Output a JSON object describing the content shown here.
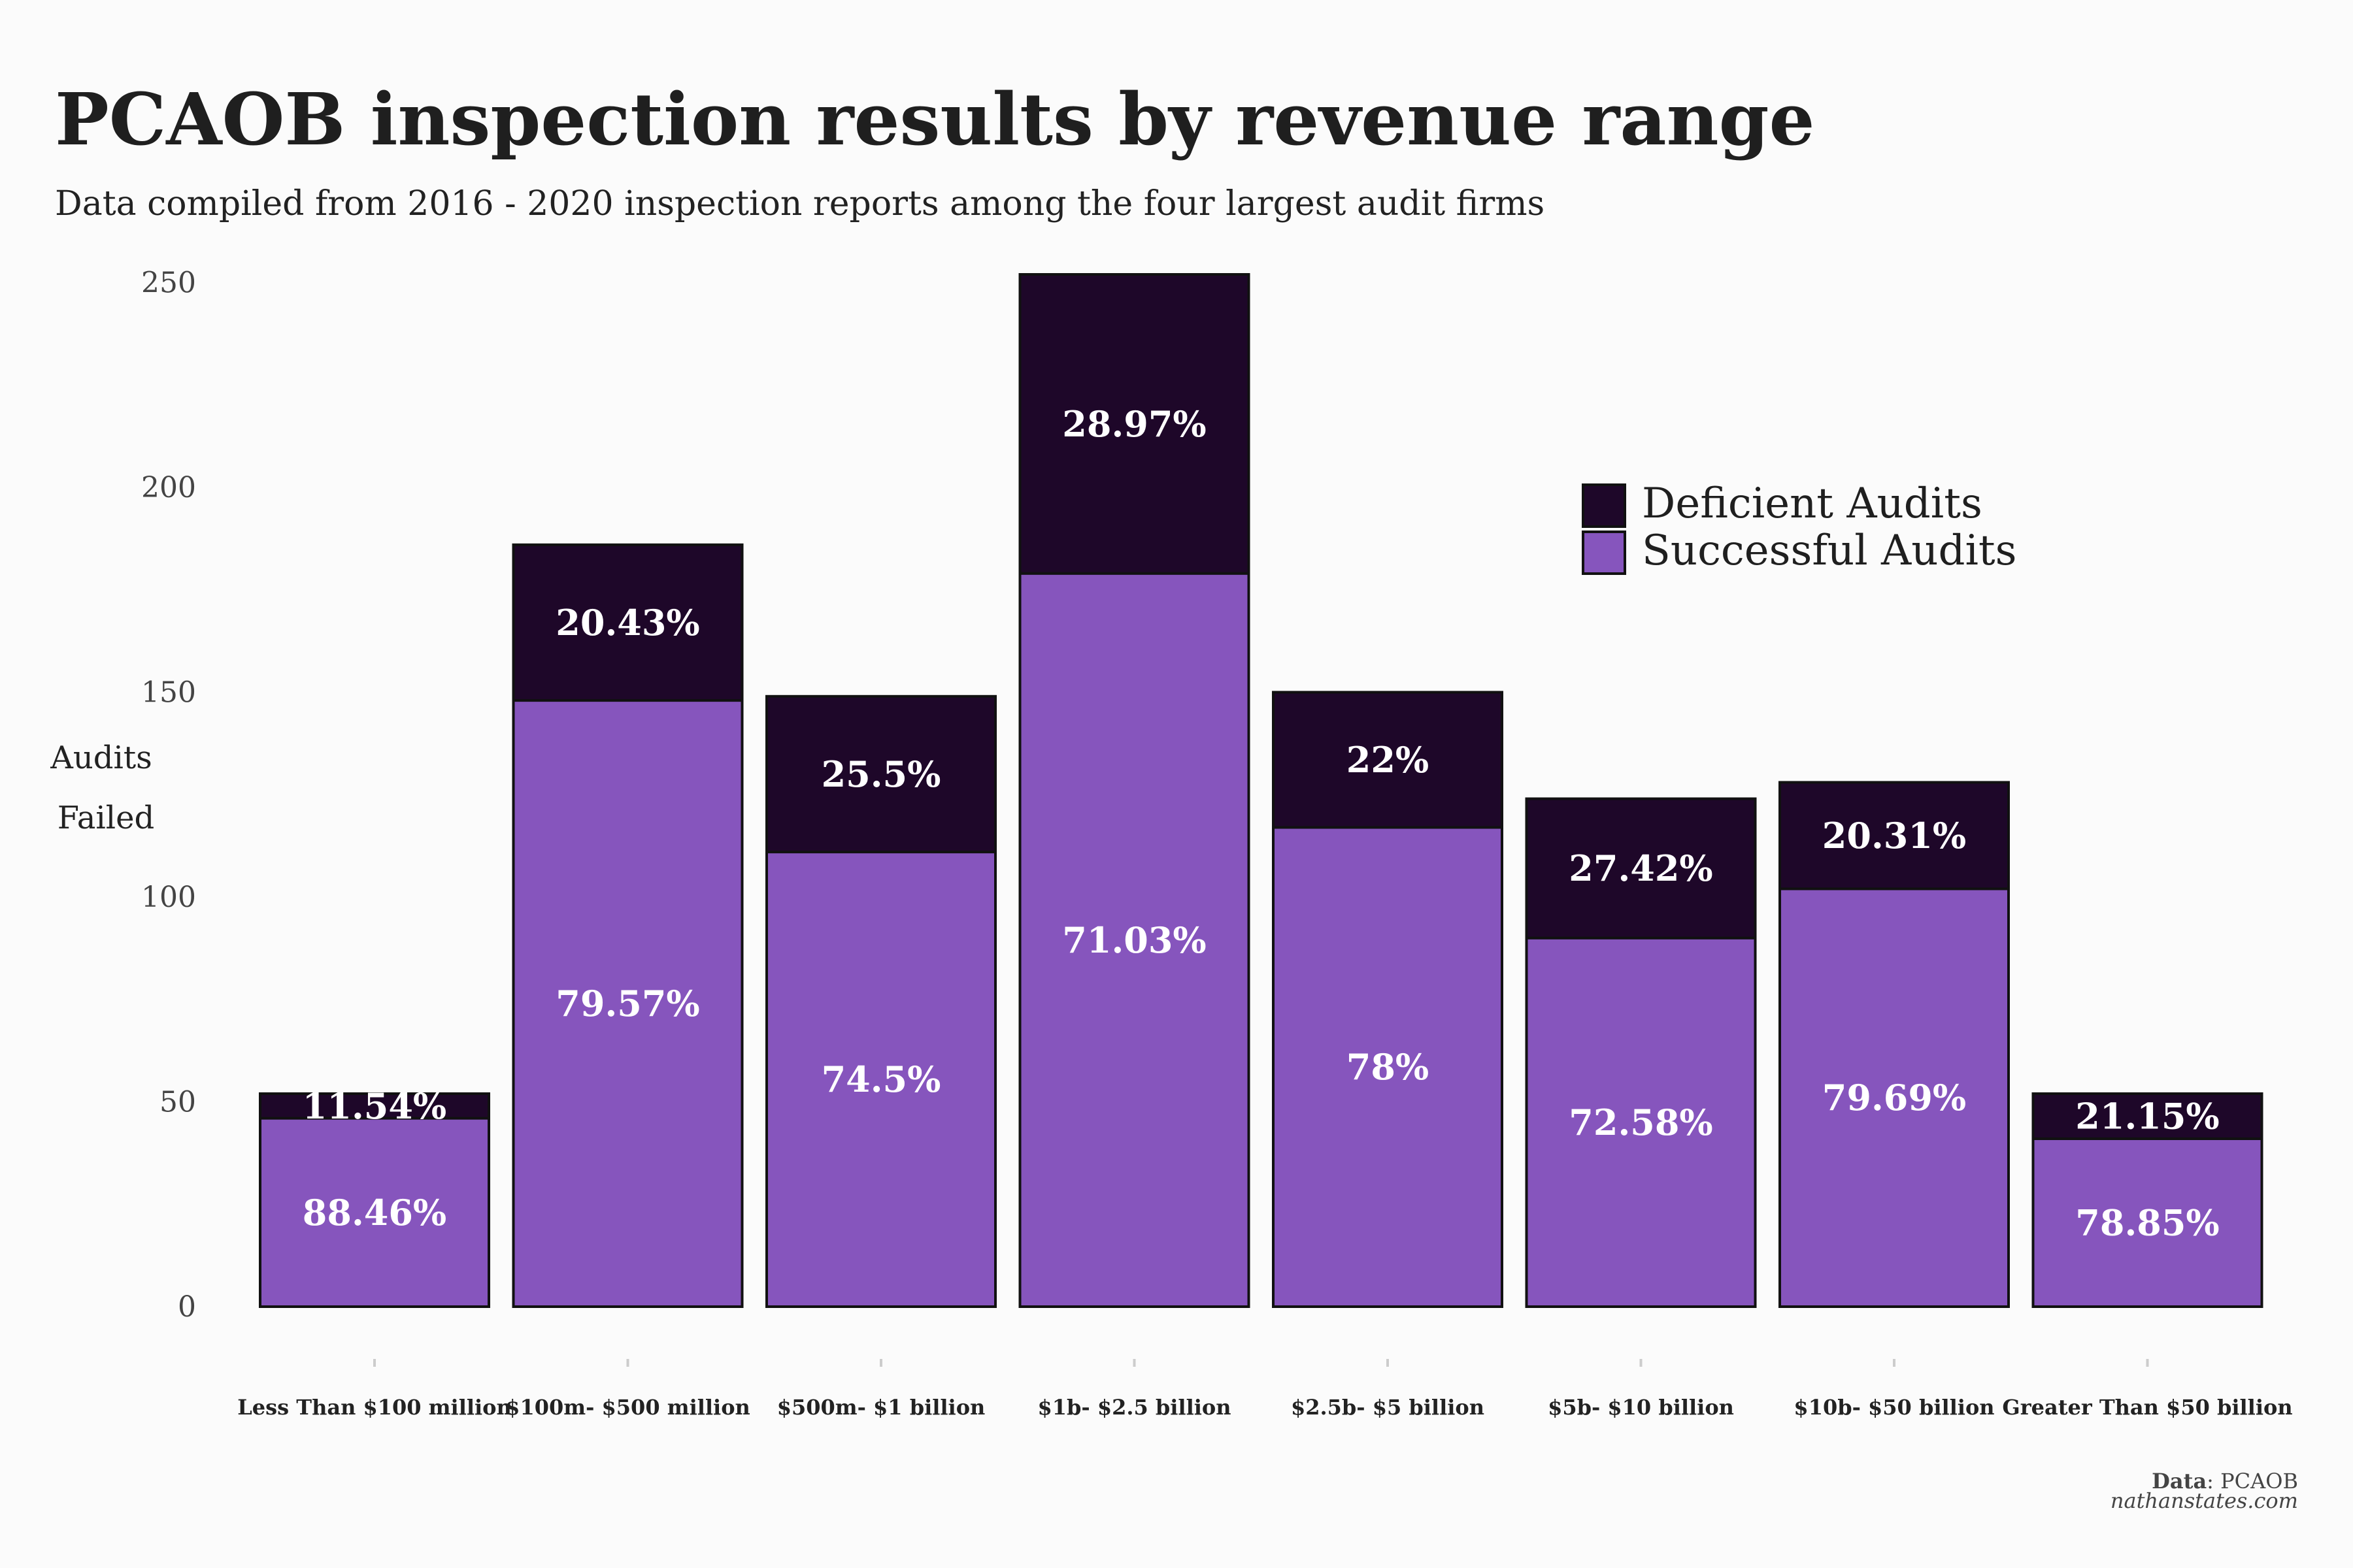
{
  "title": "PCAOB inspection results by revenue range",
  "subtitle": "Data compiled from 2016 - 2020 inspection reports among the four largest audit firms",
  "source": {
    "label": "Data",
    "value": ": PCAOB",
    "site": "nathanstates.com"
  },
  "colors": {
    "deficient": "#1e0729",
    "successful": "#8655bd",
    "outline": "#111111"
  },
  "chart_data": {
    "type": "bar",
    "stacked": true,
    "categories": [
      "Less Than $100 million",
      "$100m- $500 million",
      "$500m- $1 billion",
      "$1b- $2.5 billion",
      "$2.5b- $5 billion",
      "$5b- $10 billion",
      "$10b- $50 billion",
      "Greater Than $50 billion"
    ],
    "series": [
      {
        "name": "Successful Audits",
        "values": [
          46,
          148,
          111,
          179,
          117,
          90,
          102,
          41
        ],
        "labels": [
          "88.46%",
          "79.57%",
          "74.5%",
          "71.03%",
          "78%",
          "72.58%",
          "79.69%",
          "78.85%"
        ]
      },
      {
        "name": "Deficient Audits",
        "values": [
          6,
          38,
          38,
          73,
          33,
          34,
          26,
          11
        ],
        "labels": [
          "11.54%",
          "20.43%",
          "25.5%",
          "28.97%",
          "22%",
          "27.42%",
          "20.31%",
          "21.15%"
        ]
      }
    ],
    "ylabel": [
      "Audits",
      "Failed"
    ],
    "yticks": [
      0,
      50,
      100,
      150,
      200,
      250
    ],
    "ylim": [
      0,
      252
    ],
    "legend": {
      "position": "top-right",
      "entries": [
        "Deficient Audits",
        "Successful Audits"
      ]
    },
    "grid": false
  }
}
